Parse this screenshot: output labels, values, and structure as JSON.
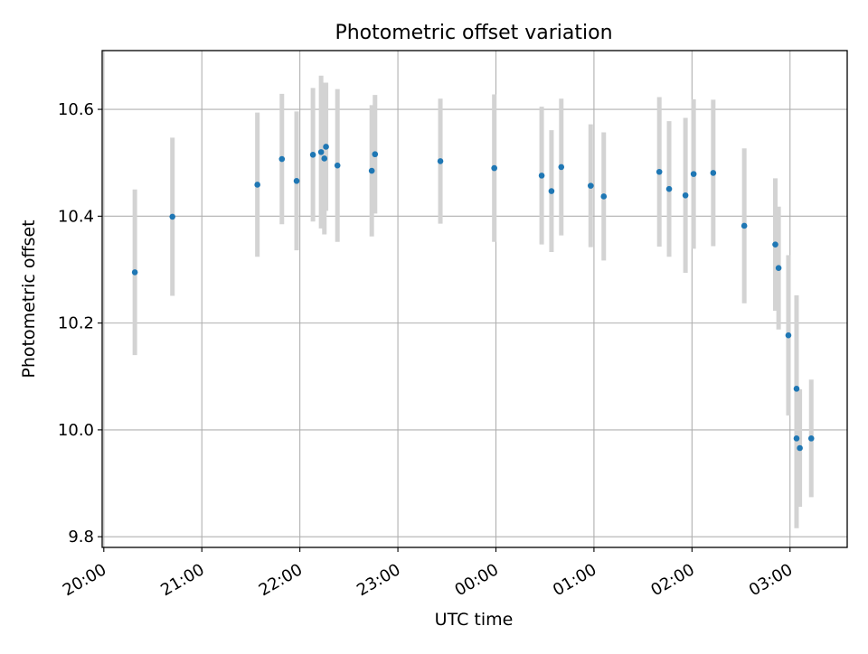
{
  "chart_data": {
    "type": "scatter",
    "title": "Photometric offset variation",
    "xlabel": "UTC time",
    "ylabel": "Photometric offset",
    "x_axis_type": "time",
    "xlim": [
      "19:59",
      "03:35"
    ],
    "ylim": [
      9.78,
      10.71
    ],
    "x_ticks": [
      "20:00",
      "21:00",
      "22:00",
      "23:00",
      "00:00",
      "01:00",
      "02:00",
      "03:00"
    ],
    "y_ticks": [
      9.8,
      10.0,
      10.2,
      10.4,
      10.6
    ],
    "y_tick_labels": [
      "9.8",
      "10.0",
      "10.2",
      "10.4",
      "10.6"
    ],
    "grid": true,
    "legend": "none",
    "point_color": "#1f77b4",
    "errorbar_color": "#d3d3d3",
    "series": [
      {
        "points": [
          {
            "x": "20:19",
            "y": 10.295,
            "err": 0.155
          },
          {
            "x": "20:42",
            "y": 10.399,
            "err": 0.148
          },
          {
            "x": "21:34",
            "y": 10.459,
            "err": 0.135
          },
          {
            "x": "21:49",
            "y": 10.507,
            "err": 0.122
          },
          {
            "x": "21:58",
            "y": 10.466,
            "err": 0.13
          },
          {
            "x": "22:08",
            "y": 10.515,
            "err": 0.125
          },
          {
            "x": "22:13",
            "y": 10.52,
            "err": 0.143
          },
          {
            "x": "22:15",
            "y": 10.508,
            "err": 0.142
          },
          {
            "x": "22:16",
            "y": 10.53,
            "err": 0.12
          },
          {
            "x": "22:23",
            "y": 10.495,
            "err": 0.143
          },
          {
            "x": "22:44",
            "y": 10.485,
            "err": 0.123
          },
          {
            "x": "22:46",
            "y": 10.516,
            "err": 0.111
          },
          {
            "x": "23:26",
            "y": 10.503,
            "err": 0.117
          },
          {
            "x": "23:59",
            "y": 10.49,
            "err": 0.138
          },
          {
            "x": "00:28",
            "y": 10.476,
            "err": 0.129
          },
          {
            "x": "00:34",
            "y": 10.447,
            "err": 0.114
          },
          {
            "x": "00:40",
            "y": 10.492,
            "err": 0.128
          },
          {
            "x": "00:58",
            "y": 10.457,
            "err": 0.115
          },
          {
            "x": "01:06",
            "y": 10.437,
            "err": 0.12
          },
          {
            "x": "01:40",
            "y": 10.483,
            "err": 0.14
          },
          {
            "x": "01:46",
            "y": 10.451,
            "err": 0.127
          },
          {
            "x": "01:56",
            "y": 10.439,
            "err": 0.145
          },
          {
            "x": "02:01",
            "y": 10.479,
            "err": 0.14
          },
          {
            "x": "02:13",
            "y": 10.481,
            "err": 0.137
          },
          {
            "x": "02:32",
            "y": 10.382,
            "err": 0.145
          },
          {
            "x": "02:51",
            "y": 10.347,
            "err": 0.124
          },
          {
            "x": "02:53",
            "y": 10.303,
            "err": 0.115
          },
          {
            "x": "02:59",
            "y": 10.177,
            "err": 0.15
          },
          {
            "x": "03:04",
            "y": 10.077,
            "err": 0.175
          },
          {
            "x": "03:04",
            "y": 9.984,
            "err": 0.168
          },
          {
            "x": "03:06",
            "y": 9.966,
            "err": 0.11
          },
          {
            "x": "03:13",
            "y": 9.984,
            "err": 0.11
          }
        ]
      }
    ]
  }
}
